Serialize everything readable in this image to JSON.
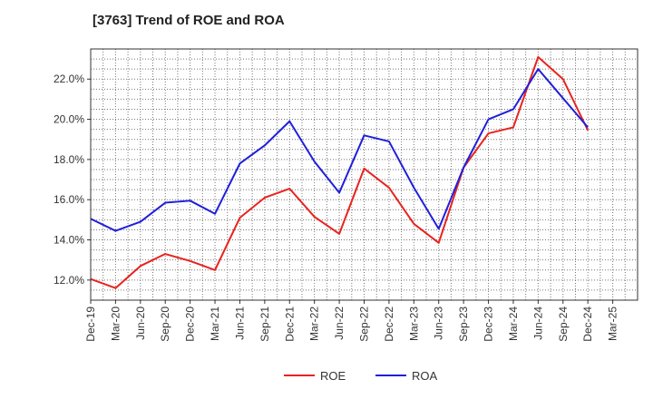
{
  "chart_data": {
    "type": "line",
    "title": "[3763]  Trend of ROE and ROA",
    "xlabel": "",
    "ylabel": "",
    "categories": [
      "Dec-19",
      "Mar-20",
      "Jun-20",
      "Sep-20",
      "Dec-20",
      "Mar-21",
      "Jun-21",
      "Sep-21",
      "Dec-21",
      "Mar-22",
      "Jun-22",
      "Sep-22",
      "Dec-22",
      "Mar-23",
      "Jun-23",
      "Sep-23",
      "Dec-23",
      "Mar-24",
      "Jun-24",
      "Sep-24",
      "Dec-24",
      "Mar-25"
    ],
    "ylim": [
      11.0,
      23.5
    ],
    "yticks": [
      12.0,
      14.0,
      16.0,
      18.0,
      20.0,
      22.0
    ],
    "ytick_labels": [
      "12.0%",
      "14.0%",
      "16.0%",
      "18.0%",
      "20.0%",
      "22.0%"
    ],
    "grid": true,
    "legend_position": "bottom",
    "series": [
      {
        "name": "ROE",
        "color": "#e8231f",
        "values": [
          12.05,
          11.6,
          12.7,
          13.3,
          12.95,
          12.5,
          15.1,
          16.1,
          16.55,
          15.15,
          14.3,
          17.55,
          16.6,
          14.8,
          13.85,
          17.6,
          19.3,
          19.6,
          23.1,
          22.0,
          19.45,
          null
        ]
      },
      {
        "name": "ROA",
        "color": "#1f1fdc",
        "values": [
          15.05,
          14.45,
          14.9,
          15.85,
          15.95,
          15.3,
          17.8,
          18.7,
          19.9,
          17.9,
          16.35,
          19.2,
          18.9,
          16.6,
          14.55,
          17.6,
          20.0,
          20.5,
          22.5,
          21.05,
          19.6,
          null
        ]
      }
    ]
  }
}
